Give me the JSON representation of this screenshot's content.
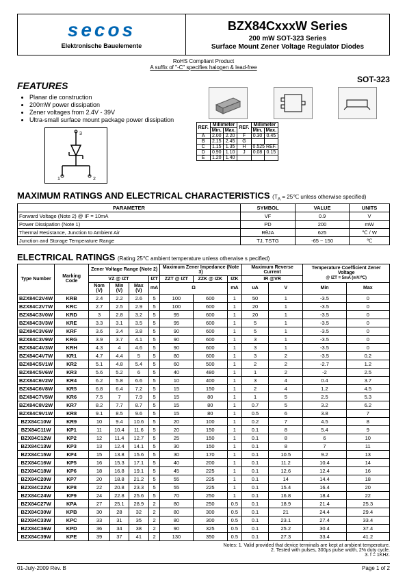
{
  "header": {
    "logo": "secos",
    "logo_sub": "Elektronische Bauelemente",
    "series": "BZX84CxxxW Series",
    "sub1": "200 mW SOT-323 Series",
    "sub2": "Surface Mount Zener Voltage Regulator Diodes"
  },
  "rohs": {
    "line1": "RoHS Compliant Product",
    "line2": "A suffix of \"-C\" specifies halogen & lead-free"
  },
  "features": {
    "title": "FEATURES",
    "items": [
      "Planar die construction",
      "200mW power dissipation",
      "Zener voltages from 2.4V - 39V",
      "Ultra-small surface mount package power dissipation"
    ]
  },
  "package": {
    "label": "SOT-323",
    "dim_head1": "REF.",
    "dim_head2": "Millimeter",
    "dim_min": "Min.",
    "dim_max": "Max.",
    "rows": [
      {
        "r1": "A",
        "mn1": "2.00",
        "mx1": "2.20",
        "r2": "F",
        "mn2": "0.30",
        "mx2": "0.45"
      },
      {
        "r1": "B",
        "mn1": "2.15",
        "mx1": "2.45",
        "r2": "G",
        "mn2": "",
        "mx2": ""
      },
      {
        "r1": "C",
        "mn1": "1.15",
        "mx1": "1.35",
        "r2": "H",
        "mn2": "0.525 REF.",
        "mx2": ""
      },
      {
        "r1": "D",
        "mn1": "0.90",
        "mx1": "1.10",
        "r2": "J",
        "mn2": "0.08",
        "mx2": "0.15"
      },
      {
        "r1": "E",
        "mn1": "1.20",
        "mx1": "1.40",
        "r2": "",
        "mn2": "",
        "mx2": ""
      }
    ]
  },
  "max": {
    "title": "MAXIMUM RATINGS AND ELECTRICAL CHARACTERISTICS",
    "cond": "(T",
    "cond2": " = 25℃ unless otherwise specified)",
    "headers": [
      "PARAMETER",
      "SYMBOL",
      "VALUE",
      "UNITS"
    ],
    "rows": [
      [
        "Forward Voltage (Note 2) @ IF = 10mA",
        "VF",
        "0.9",
        "V"
      ],
      [
        "Power Dissipation (Note 1)",
        "PD",
        "200",
        "mW"
      ],
      [
        "Thermal Resistance, Junction to Ambient Air",
        "RθJA",
        "625",
        "℃ / W"
      ],
      [
        "Junction and Storage Temperature Range",
        "TJ, TSTG",
        "-65 ~ 150",
        "℃"
      ]
    ]
  },
  "elec": {
    "title": "ELECTRICAL RATINGS",
    "cond": "(Rating 25℃ ambient temperature unless otherwise s pecified)",
    "headers": {
      "type": "Type Number",
      "marking": "Marking Code",
      "zener_range": "Zener Voltage Range (Note 2)",
      "max_imp": "Maximum Zener Impedance (Note 3)",
      "max_rev": "Maximum Reverse Current",
      "temp_coef": "Temperature Coefficient Zener Voltage",
      "temp_coef_sub": "@ IZT = 5mA (mV/℃)",
      "vz": "VZ @ IZT",
      "izt": "IZT",
      "zzt": "ZZT @ IZT",
      "zzk": "ZZK @ IZK",
      "izk": "IZK",
      "ir_vr": "IR          @VR",
      "nom": "Nom (V)",
      "min": "Min (V)",
      "max": "Max (V)",
      "ma": "mA",
      "ohm": "Ω",
      "ua": "uA",
      "v": "V",
      "tmin": "Min",
      "tmax": "Max"
    },
    "rows": [
      [
        "BZX84C2V4W",
        "KRB",
        "2.4",
        "2.2",
        "2.6",
        "5",
        "100",
        "600",
        "1",
        "50",
        "1",
        "-3.5",
        "0"
      ],
      [
        "BZX84C2V7W",
        "KRC",
        "2.7",
        "2.5",
        "2.9",
        "5",
        "100",
        "600",
        "1",
        "20",
        "1",
        "-3.5",
        "0"
      ],
      [
        "BZX84C3V0W",
        "KRD",
        "3",
        "2.8",
        "3.2",
        "5",
        "95",
        "600",
        "1",
        "20",
        "1",
        "-3.5",
        "0"
      ],
      [
        "BZX84C3V3W",
        "KRE",
        "3.3",
        "3.1",
        "3.5",
        "5",
        "95",
        "600",
        "1",
        "5",
        "1",
        "-3.5",
        "0"
      ],
      [
        "BZX84C3V6W",
        "KRF",
        "3.6",
        "3.4",
        "3.8",
        "5",
        "90",
        "600",
        "1",
        "5",
        "1",
        "-3.5",
        "0"
      ],
      [
        "BZX84C3V9W",
        "KRG",
        "3.9",
        "3.7",
        "4.1",
        "5",
        "90",
        "600",
        "1",
        "3",
        "1",
        "-3.5",
        "0"
      ],
      [
        "BZX84C4V3W",
        "KRH",
        "4.3",
        "4",
        "4.6",
        "5",
        "90",
        "600",
        "1",
        "3",
        "1",
        "-3.5",
        "0"
      ],
      [
        "BZX84C4V7W",
        "KR1",
        "4.7",
        "4.4",
        "5",
        "5",
        "80",
        "600",
        "1",
        "3",
        "2",
        "-3.5",
        "0.2"
      ],
      [
        "BZX84C5V1W",
        "KR2",
        "5.1",
        "4.8",
        "5.4",
        "5",
        "60",
        "500",
        "1",
        "2",
        "2",
        "-2.7",
        "1.2"
      ],
      [
        "BZX84C5V6W",
        "KR3",
        "5.6",
        "5.2",
        "6",
        "5",
        "40",
        "480",
        "1",
        "1",
        "2",
        "-2",
        "2.5"
      ],
      [
        "BZX84C6V2W",
        "KR4",
        "6.2",
        "5.8",
        "6.6",
        "5",
        "10",
        "400",
        "1",
        "3",
        "4",
        "0.4",
        "3.7"
      ],
      [
        "BZX84C6V8W",
        "KR5",
        "6.8",
        "6.4",
        "7.2",
        "5",
        "15",
        "150",
        "1",
        "2",
        "4",
        "1.2",
        "4.5"
      ],
      [
        "BZX84C7V5W",
        "KR6",
        "7.5",
        "7",
        "7.9",
        "5",
        "15",
        "80",
        "1",
        "1",
        "5",
        "2.5",
        "5.3"
      ],
      [
        "BZX84C8V2W",
        "KR7",
        "8.2",
        "7.7",
        "8.7",
        "5",
        "15",
        "80",
        "1",
        "0.7",
        "5",
        "3.2",
        "6.2"
      ],
      [
        "BZX84C9V1W",
        "KR8",
        "9.1",
        "8.5",
        "9.6",
        "5",
        "15",
        "80",
        "1",
        "0.5",
        "6",
        "3.8",
        "7"
      ],
      [
        "BZX84C10W",
        "KR9",
        "10",
        "9.4",
        "10.6",
        "5",
        "20",
        "100",
        "1",
        "0.2",
        "7",
        "4.5",
        "8"
      ],
      [
        "BZX84C11W",
        "KP1",
        "11",
        "10.4",
        "11.6",
        "5",
        "20",
        "150",
        "1",
        "0.1",
        "8",
        "5.4",
        "9"
      ],
      [
        "BZX84C12W",
        "KP2",
        "12",
        "11.4",
        "12.7",
        "5",
        "25",
        "150",
        "1",
        "0.1",
        "8",
        "6",
        "10"
      ],
      [
        "BZX84C13W",
        "KP3",
        "13",
        "12.4",
        "14.1",
        "5",
        "30",
        "150",
        "1",
        "0.1",
        "8",
        "7",
        "11"
      ],
      [
        "BZX84C15W",
        "KP4",
        "15",
        "13.8",
        "15.6",
        "5",
        "30",
        "170",
        "1",
        "0.1",
        "10.5",
        "9.2",
        "13"
      ],
      [
        "BZX84C16W",
        "KP5",
        "16",
        "15.3",
        "17.1",
        "5",
        "40",
        "200",
        "1",
        "0.1",
        "11.2",
        "10.4",
        "14"
      ],
      [
        "BZX84C18W",
        "KP6",
        "18",
        "16.8",
        "19.1",
        "5",
        "45",
        "225",
        "1",
        "0.1",
        "12.6",
        "12.4",
        "16"
      ],
      [
        "BZX84C20W",
        "KP7",
        "20",
        "18.8",
        "21.2",
        "5",
        "55",
        "225",
        "1",
        "0.1",
        "14",
        "14.4",
        "18"
      ],
      [
        "BZX84C22W",
        "KP8",
        "22",
        "20.8",
        "23.3",
        "5",
        "55",
        "225",
        "1",
        "0.1",
        "15.4",
        "16.4",
        "20"
      ],
      [
        "BZX84C24W",
        "KP9",
        "24",
        "22.8",
        "25.6",
        "5",
        "70",
        "250",
        "1",
        "0.1",
        "16.8",
        "18.4",
        "22"
      ],
      [
        "BZX84C27W",
        "KPA",
        "27",
        "25.1",
        "28.9",
        "2",
        "80",
        "250",
        "0.5",
        "0.1",
        "18.9",
        "21.4",
        "25.3"
      ],
      [
        "BZX84C30W",
        "KPB",
        "30",
        "28",
        "32",
        "2",
        "80",
        "300",
        "0.5",
        "0.1",
        "21",
        "24.4",
        "29.4"
      ],
      [
        "BZX84C33W",
        "KPC",
        "33",
        "31",
        "35",
        "2",
        "80",
        "300",
        "0.5",
        "0.1",
        "23.1",
        "27.4",
        "33.4"
      ],
      [
        "BZX84C36W",
        "KPD",
        "36",
        "34",
        "38",
        "2",
        "90",
        "325",
        "0.5",
        "0.1",
        "25.2",
        "30.4",
        "37.4"
      ],
      [
        "BZX84C39W",
        "KPE",
        "39",
        "37",
        "41",
        "2",
        "130",
        "350",
        "0.5",
        "0.1",
        "27.3",
        "33.4",
        "41.2"
      ]
    ]
  },
  "notes": {
    "n1": "Notes: 1. Valid provided that device terminals are kept at ambient temperature.",
    "n2": "2. Tested with pulses, 300μs pulse width, 2% duty cycle.",
    "n3": "3. f = 1KHz."
  },
  "footer": {
    "left": "01-July-2009 Rev. B",
    "right": "Page 1 of 2"
  }
}
